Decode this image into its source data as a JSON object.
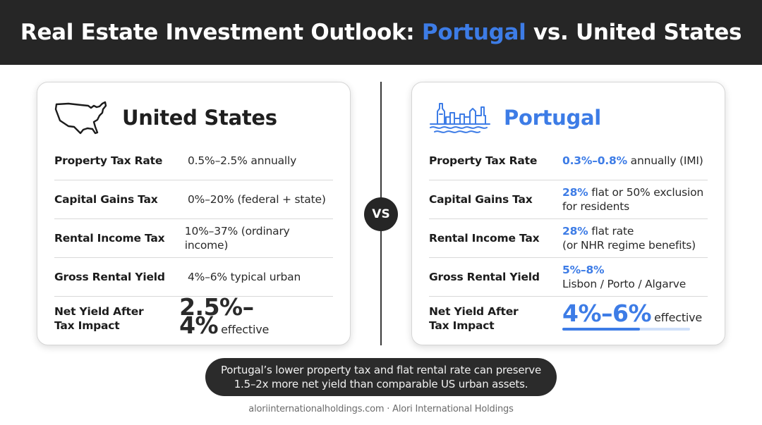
{
  "header": {
    "title_before": "Real Estate Investment Outlook: ",
    "title_accent": "Portugal",
    "title_after": " vs. United States"
  },
  "vs_label": "VS",
  "colors": {
    "accent": "#3d7ce6",
    "header_bg": "#262626",
    "dark": "#2b2b2b"
  },
  "us": {
    "icon": "us-map-icon",
    "title": "United States",
    "rows": [
      {
        "label": "Property Tax Rate",
        "value": "0.5%–2.5% annually"
      },
      {
        "label": "Capital Gains Tax",
        "value": "0%–20% (federal + state)"
      },
      {
        "label": "Rental Income Tax",
        "value": "10%–37% (ordinary income)"
      },
      {
        "label": "Gross Rental Yield",
        "value": "4%–6% typical urban"
      },
      {
        "label_line1": "Net Yield After",
        "label_line2": "Tax Impact",
        "value_big": "2.5%–4%",
        "value_suffix": "effective"
      }
    ]
  },
  "pt": {
    "icon": "portugal-skyline-icon",
    "title": "Portugal",
    "rows": [
      {
        "label": "Property Tax Rate",
        "value_hl": "0.3%–0.8%",
        "value_rest": " annually (IMI)"
      },
      {
        "label": "Capital Gains Tax",
        "value_hl": "28%",
        "value_rest": " flat or 50% exclusion",
        "value_line2": "for residents"
      },
      {
        "label": "Rental Income Tax",
        "value_hl": "28%",
        "value_rest": " flat rate",
        "value_line2": "(or NHR regime benefits)"
      },
      {
        "label": "Gross Rental Yield",
        "value_hl": "5%–8%",
        "value_line2": "Lisbon / Porto / Algarve"
      },
      {
        "label_line1": "Net Yield After",
        "label_line2": "Tax Impact",
        "value_big": "4%–6%",
        "value_suffix": "effective"
      }
    ]
  },
  "callout": {
    "line1": "Portugal’s lower property tax and flat rental rate can preserve",
    "line2": "1.5–2x more net yield than comparable US urban assets."
  },
  "footer": "aloriinternationalholdings.com · Alori International Holdings"
}
